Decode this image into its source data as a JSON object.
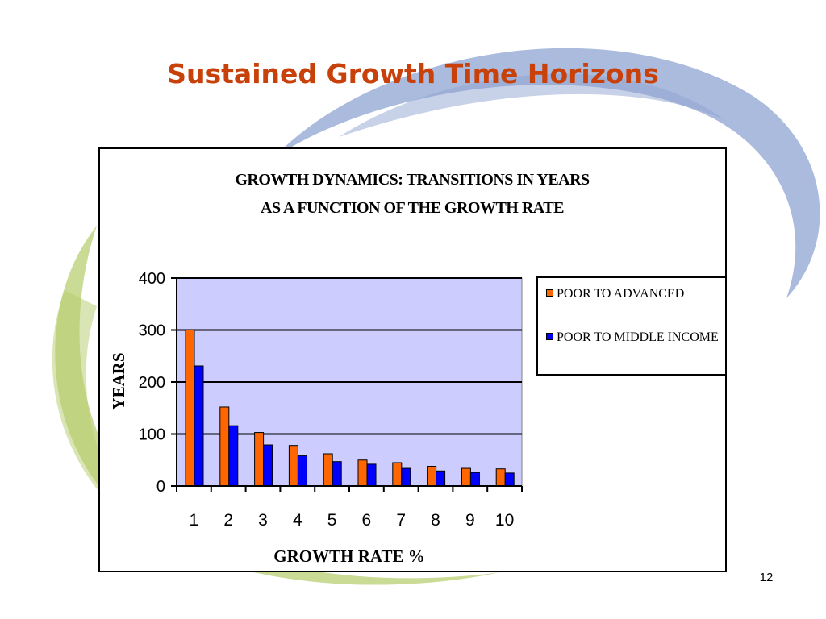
{
  "slide": {
    "title": "Sustained Growth Time Horizons",
    "page_number": "12"
  },
  "colors": {
    "title": "#C8410B",
    "swirl_blue": "#8FA4D1",
    "swirl_green": "#B3CC6A",
    "plot_background": "#CCCCFF",
    "series_orange": "#FF6600",
    "series_blue": "#0000FF"
  },
  "chart_data": {
    "type": "bar",
    "title_lines": [
      "GROWTH  DYNAMICS: TRANSITIONS IN YEARS",
      "AS A FUNCTION OF THE GROWTH RATE"
    ],
    "xlabel": "GROWTH RATE %",
    "ylabel": "YEARS",
    "categories": [
      "1",
      "2",
      "3",
      "4",
      "5",
      "6",
      "7",
      "8",
      "9",
      "10"
    ],
    "ylim": [
      0,
      400
    ],
    "yticks": [
      "0",
      "100",
      "200",
      "300",
      "400"
    ],
    "grid": "horizontal",
    "legend_position": "right",
    "series": [
      {
        "name": "POOR TO ADVANCED",
        "color": "#FF6600",
        "values": [
          300,
          152,
          103,
          78,
          62,
          50,
          45,
          38,
          34,
          33
        ]
      },
      {
        "name": "POOR TO MIDDLE INCOME",
        "color": "#0000FF",
        "values": [
          231,
          116,
          79,
          58,
          47,
          42,
          34,
          29,
          26,
          25
        ]
      }
    ]
  }
}
